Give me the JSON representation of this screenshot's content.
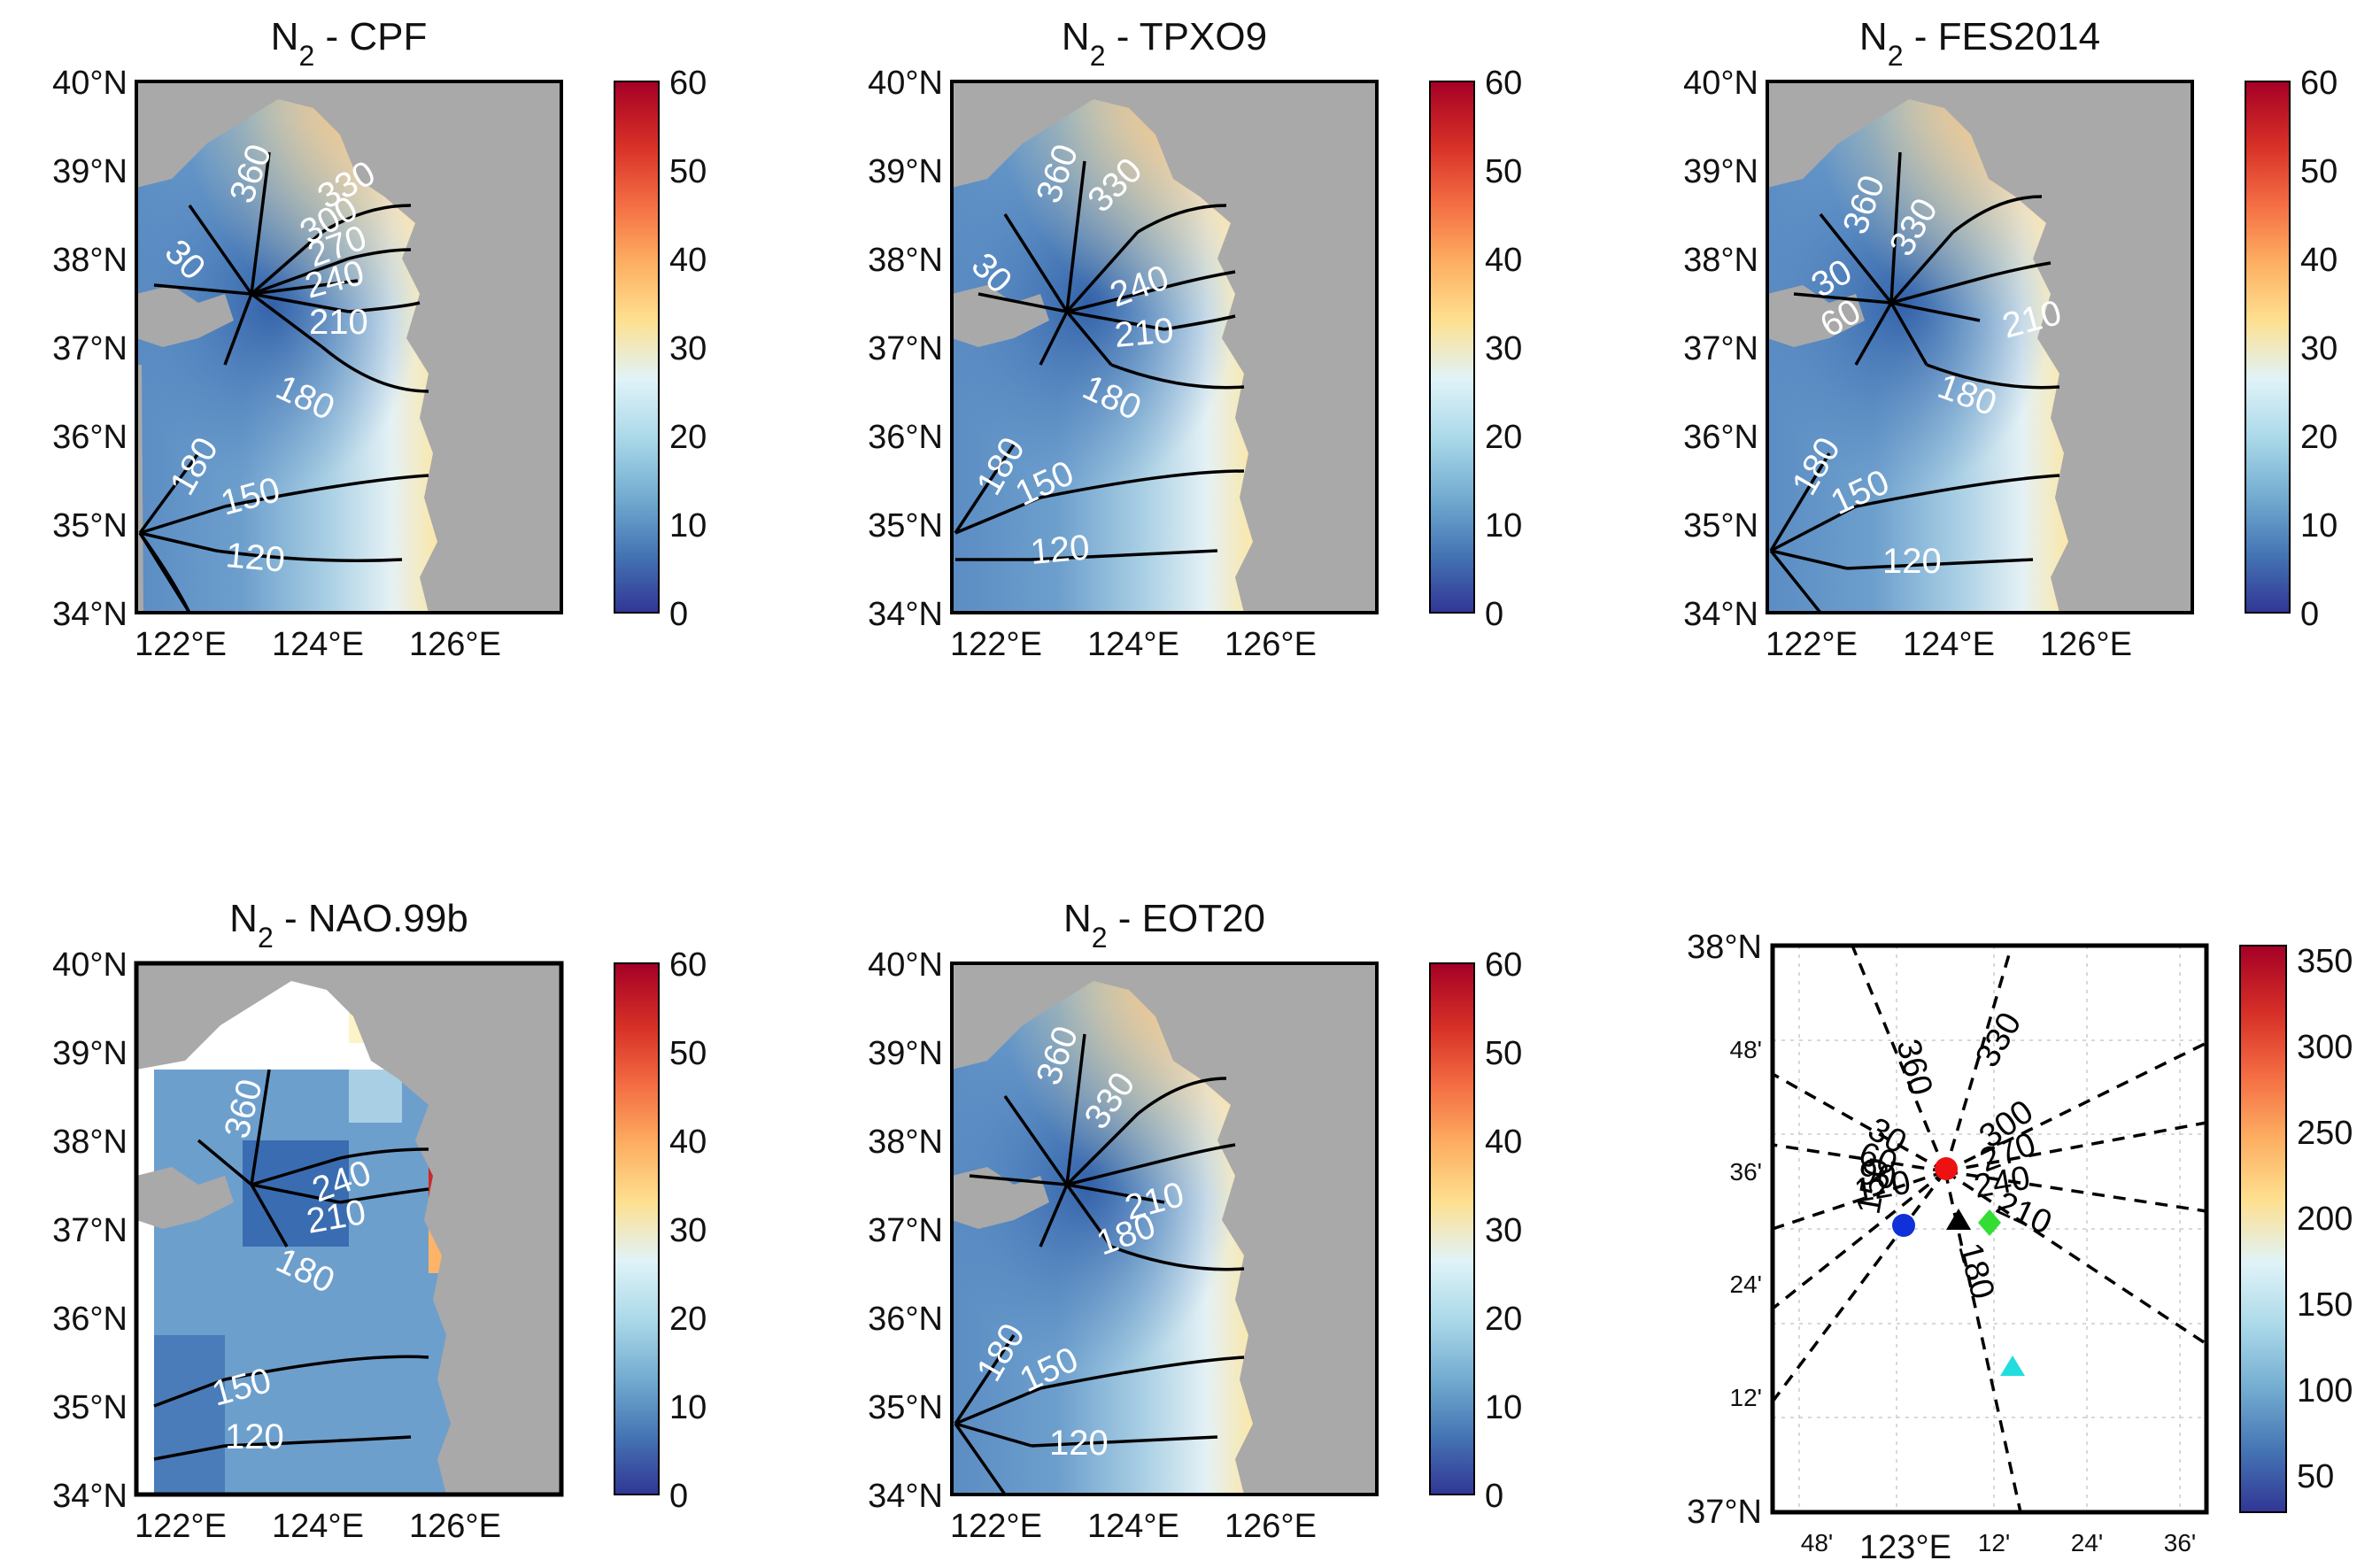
{
  "figure": {
    "colors": {
      "land": "#a9a9a9",
      "contour": "#000000",
      "label_white": "#ffffff",
      "frame": "#000000"
    },
    "colormap_stops": [
      "#313695",
      "#4575b4",
      "#74add1",
      "#abd9e9",
      "#e0f3f8",
      "#fee090",
      "#fdae61",
      "#f46d43",
      "#d73027",
      "#a50026"
    ]
  },
  "panels": [
    {
      "id": "cpf",
      "title_prefix": "N",
      "title_sub": "2",
      "title_suffix": " - CPF",
      "lat_labels": [
        "40°N",
        "39°N",
        "38°N",
        "37°N",
        "36°N",
        "35°N",
        "34°N"
      ],
      "lon_labels": [
        "122°E",
        "124°E",
        "126°E"
      ],
      "colorbar": {
        "ticks": [
          "60",
          "50",
          "40",
          "30",
          "20",
          "10",
          "0"
        ],
        "min": 0,
        "max": 60
      },
      "contour_labels": [
        "360",
        "330",
        "300",
        "270",
        "240",
        "210",
        "180",
        "30",
        "180",
        "150",
        "120"
      ]
    },
    {
      "id": "tpxo9",
      "title_prefix": "N",
      "title_sub": "2",
      "title_suffix": " - TPXO9",
      "lat_labels": [
        "40°N",
        "39°N",
        "38°N",
        "37°N",
        "36°N",
        "35°N",
        "34°N"
      ],
      "lon_labels": [
        "122°E",
        "124°E",
        "126°E"
      ],
      "colorbar": {
        "ticks": [
          "60",
          "50",
          "40",
          "30",
          "20",
          "10",
          "0"
        ],
        "min": 0,
        "max": 60
      },
      "contour_labels": [
        "360",
        "330",
        "30",
        "240",
        "210",
        "180",
        "180",
        "150",
        "120"
      ]
    },
    {
      "id": "fes2014",
      "title_prefix": "N",
      "title_sub": "2",
      "title_suffix": " - FES2014",
      "lat_labels": [
        "40°N",
        "39°N",
        "38°N",
        "37°N",
        "36°N",
        "35°N",
        "34°N"
      ],
      "lon_labels": [
        "122°E",
        "124°E",
        "126°E"
      ],
      "colorbar": {
        "ticks": [
          "60",
          "50",
          "40",
          "30",
          "20",
          "10",
          "0"
        ],
        "min": 0,
        "max": 60
      },
      "contour_labels": [
        "360",
        "330",
        "30",
        "60",
        "210",
        "180",
        "180",
        "150",
        "120"
      ]
    },
    {
      "id": "nao99b",
      "title_prefix": "N",
      "title_sub": "2",
      "title_suffix": " - NAO.99b",
      "lat_labels": [
        "40°N",
        "39°N",
        "38°N",
        "37°N",
        "36°N",
        "35°N",
        "34°N"
      ],
      "lon_labels": [
        "122°E",
        "124°E",
        "126°E"
      ],
      "colorbar": {
        "ticks": [
          "60",
          "50",
          "40",
          "30",
          "20",
          "10",
          "0"
        ],
        "min": 0,
        "max": 60
      },
      "contour_labels": [
        "360",
        "240",
        "210",
        "180",
        "150",
        "120"
      ]
    },
    {
      "id": "eot20",
      "title_prefix": "N",
      "title_sub": "2",
      "title_suffix": " - EOT20",
      "lat_labels": [
        "40°N",
        "39°N",
        "38°N",
        "37°N",
        "36°N",
        "35°N",
        "34°N"
      ],
      "lon_labels": [
        "122°E",
        "124°E",
        "126°E"
      ],
      "colorbar": {
        "ticks": [
          "60",
          "50",
          "40",
          "30",
          "20",
          "10",
          "0"
        ],
        "min": 0,
        "max": 60
      },
      "contour_labels": [
        "360",
        "330",
        "210",
        "180",
        "180",
        "150",
        "120"
      ]
    },
    {
      "id": "zoom",
      "lat_labels": [
        "38°N",
        "48'",
        "36'",
        "24'",
        "12'",
        "37°N"
      ],
      "lon_labels": [
        "48'",
        "123°E",
        "12'",
        "24'",
        "36'"
      ],
      "colorbar": {
        "ticks": [
          "350",
          "300",
          "250",
          "200",
          "150",
          "100",
          "50"
        ],
        "min": 30,
        "max": 360
      },
      "contour_labels": [
        "360",
        "330",
        "300",
        "270",
        "240",
        "210",
        "180",
        "30",
        "60",
        "90",
        "120",
        "150"
      ],
      "markers": [
        {
          "shape": "circle",
          "color": "#ee1111"
        },
        {
          "shape": "circle",
          "color": "#1030d8"
        },
        {
          "shape": "triangle",
          "color": "#000000"
        },
        {
          "shape": "diamond",
          "color": "#33dd33"
        },
        {
          "shape": "triangle",
          "color": "#22dddd"
        }
      ]
    }
  ]
}
